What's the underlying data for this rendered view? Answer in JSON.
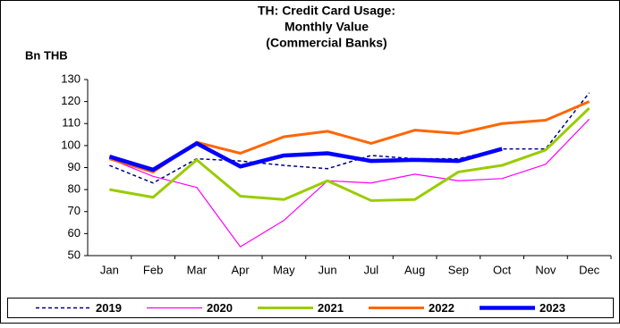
{
  "chart_data": {
    "type": "line",
    "title": [
      "TH: Credit Card Usage:",
      "Monthly Value",
      "(Commercial Banks)"
    ],
    "y_label": "Bn THB",
    "categories": [
      "Jan",
      "Feb",
      "Mar",
      "Apr",
      "May",
      "Jun",
      "Jul",
      "Aug",
      "Sep",
      "Oct",
      "Nov",
      "Dec"
    ],
    "series": [
      {
        "name": "2019",
        "color": "#000080",
        "line_width": 1.5,
        "dashed": true,
        "values": [
          91,
          83,
          94,
          93,
          91,
          89.5,
          95.5,
          94,
          94,
          98.5,
          98.5,
          124
        ]
      },
      {
        "name": "2020",
        "color": "#ff00ff",
        "line_width": 1.2,
        "dashed": false,
        "values": [
          94,
          86,
          81,
          54,
          66,
          84,
          83,
          87,
          84,
          85,
          91.5,
          112
        ]
      },
      {
        "name": "2021",
        "color": "#99cc00",
        "line_width": 3,
        "dashed": false,
        "values": [
          80,
          76.5,
          93.5,
          77,
          75.5,
          84,
          75,
          75.5,
          88,
          91,
          98,
          117
        ]
      },
      {
        "name": "2022",
        "color": "#ff6600",
        "line_width": 3,
        "dashed": false,
        "values": [
          94,
          88,
          101.5,
          96.5,
          104,
          106.5,
          101,
          107,
          105.5,
          110,
          111.5,
          120
        ]
      },
      {
        "name": "2023",
        "color": "#0000ff",
        "line_width": 4.5,
        "dashed": false,
        "values": [
          95,
          89,
          101,
          90.5,
          95.5,
          96.5,
          93,
          93.5,
          93,
          98.5,
          null,
          null
        ]
      }
    ],
    "ylim": [
      50,
      130
    ],
    "yticks": [
      50,
      60,
      70,
      80,
      90,
      100,
      110,
      120,
      130
    ],
    "grid": false,
    "legend": "bottom"
  }
}
